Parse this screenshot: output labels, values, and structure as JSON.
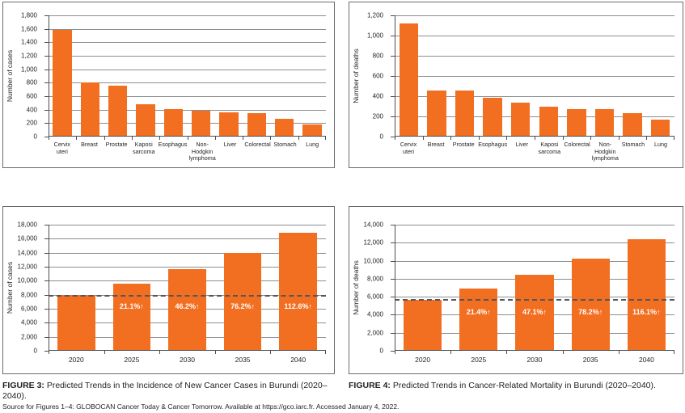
{
  "figures": {
    "fig3_caption": {
      "label": "FIGURE 3:",
      "text": "Predicted Trends in the Incidence of New Cancer Cases in Burundi (2020–2040)."
    },
    "fig4_caption": {
      "label": "FIGURE 4:",
      "text": "Predicted Trends in Cancer-Related Mortality in Burundi (2020–2040)."
    },
    "source_note": "Source for Figures 1–4: GLOBOCAN Cancer Today & Cancer Tomorrow. Available at https://gco.iarc.fr. Accessed January 4, 2022."
  },
  "colors": {
    "bar": "#F26F21",
    "grid": "#8C8E90",
    "axis": "#4D4D4F",
    "dash": "#55565A",
    "text": "#231F20",
    "panel_border": "#6A6B6D",
    "bar_label": "#FFFFFF"
  },
  "chart_data": [
    {
      "type": "bar",
      "panel": "top-left",
      "title": "",
      "ylabel": "Number of cases",
      "xlabel": "",
      "categories": [
        "Cervix uteri",
        "Breast",
        "Prostate",
        "Kaposi sarcoma",
        "Esophagus",
        "Non-Hodgkin lymphoma",
        "Liver",
        "Colorectal",
        "Stomach",
        "Lung"
      ],
      "values": [
        1580,
        800,
        755,
        480,
        410,
        390,
        355,
        350,
        260,
        175
      ],
      "ylim": [
        0,
        1800
      ],
      "ystep": 200,
      "grid": true,
      "dashline_value": null,
      "bar_labels": null,
      "bar_label_y": null
    },
    {
      "type": "bar",
      "panel": "top-right",
      "title": "",
      "ylabel": "Number of deaths",
      "xlabel": "",
      "categories": [
        "Cervix uteri",
        "Breast",
        "Prostate",
        "Esophagus",
        "Liver",
        "Kaposi sarcoma",
        "Colorectal",
        "Non-Hodgkin lymphoma",
        "Stomach",
        "Lung"
      ],
      "values": [
        1120,
        460,
        455,
        385,
        335,
        295,
        275,
        270,
        235,
        165
      ],
      "ylim": [
        0,
        1200
      ],
      "ystep": 200,
      "grid": true,
      "dashline_value": null,
      "bar_labels": null,
      "bar_label_y": null
    },
    {
      "type": "bar",
      "panel": "bottom-left",
      "title": "",
      "ylabel": "Number of cases",
      "xlabel": "",
      "categories": [
        "2020",
        "2025",
        "2030",
        "2035",
        "2040"
      ],
      "values": [
        7950,
        9600,
        11600,
        14000,
        16900
      ],
      "ylim": [
        0,
        18000
      ],
      "ystep": 2000,
      "grid": true,
      "dashline_value": 7950,
      "bar_labels": [
        "",
        "21.1%↑",
        "46.2%↑",
        "76.2%↑",
        "112.6%↑"
      ],
      "bar_label_y": 6400
    },
    {
      "type": "bar",
      "panel": "bottom-right",
      "title": "",
      "ylabel": "Number of deaths",
      "xlabel": "",
      "categories": [
        "2020",
        "2025",
        "2030",
        "2035",
        "2040"
      ],
      "values": [
        5700,
        6900,
        8400,
        10200,
        12350
      ],
      "ylim": [
        0,
        14000
      ],
      "ystep": 2000,
      "grid": true,
      "dashline_value": 5750,
      "bar_labels": [
        "",
        "21.4%↑",
        "47.1%↑",
        "78.2%↑",
        "116.1%↑"
      ],
      "bar_label_y": 4300
    }
  ]
}
